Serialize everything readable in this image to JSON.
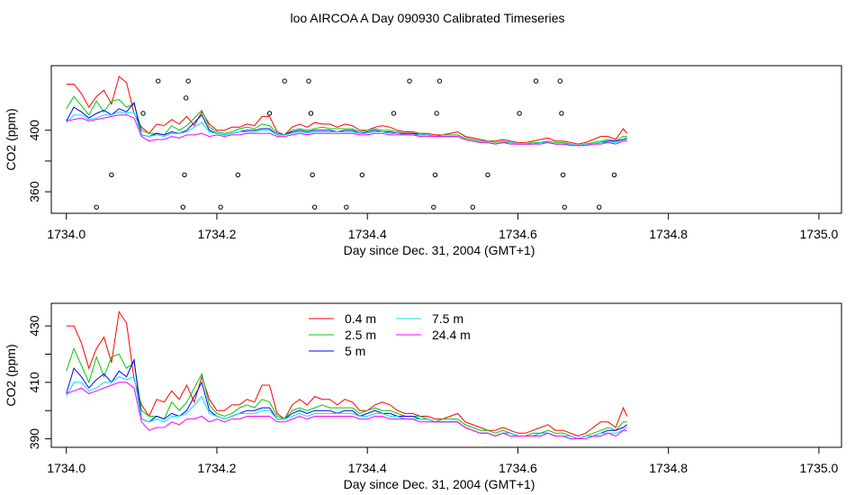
{
  "title": "loo AIRCOA A  Day 090930  Calibrated Timeseries",
  "colors": {
    "0.4 m": "#ff0000",
    "2.5 m": "#00cc00",
    "5 m": "#0000ff",
    "7.5 m": "#00e5e5",
    "24.4 m": "#ff00ff",
    "points": "#000000"
  },
  "chart_data": [
    {
      "type": "line",
      "title": "",
      "xlabel": "Day since Dec. 31, 2004 (GMT+1)",
      "ylabel": "CO2 (ppm)",
      "xlim": [
        1733.98,
        1735.03
      ],
      "ylim": [
        346,
        442
      ],
      "xticks": [
        1734.0,
        1734.2,
        1734.4,
        1734.6,
        1734.8,
        1735.0
      ],
      "xtick_labels": [
        "1734.0",
        "1734.2",
        "1734.4",
        "1734.6",
        "1734.8",
        "1735.0"
      ],
      "yticks": [
        360,
        380,
        400
      ],
      "ytick_labels": [
        "360",
        "",
        "400"
      ],
      "x": [
        1734.0,
        1734.01,
        1734.02,
        1734.03,
        1734.04,
        1734.05,
        1734.06,
        1734.07,
        1734.08,
        1734.09,
        1734.1,
        1734.11,
        1734.12,
        1734.13,
        1734.14,
        1734.15,
        1734.16,
        1734.17,
        1734.18,
        1734.19,
        1734.2,
        1734.21,
        1734.22,
        1734.23,
        1734.24,
        1734.25,
        1734.26,
        1734.27,
        1734.28,
        1734.29,
        1734.3,
        1734.31,
        1734.32,
        1734.33,
        1734.34,
        1734.35,
        1734.36,
        1734.37,
        1734.38,
        1734.39,
        1734.4,
        1734.41,
        1734.42,
        1734.43,
        1734.44,
        1734.45,
        1734.46,
        1734.47,
        1734.48,
        1734.49,
        1734.5,
        1734.51,
        1734.52,
        1734.53,
        1734.54,
        1734.55,
        1734.56,
        1734.57,
        1734.58,
        1734.59,
        1734.6,
        1734.61,
        1734.62,
        1734.63,
        1734.64,
        1734.65,
        1734.66,
        1734.67,
        1734.68,
        1734.69,
        1734.7,
        1734.71,
        1734.72,
        1734.73,
        1734.74,
        1734.745
      ],
      "series": [
        {
          "name": "0.4 m",
          "values": [
            430,
            430,
            424,
            415,
            422,
            426,
            417,
            435,
            431,
            411,
            402,
            398,
            404,
            403,
            407,
            404,
            409,
            403,
            412,
            404,
            400,
            400,
            402,
            402,
            404,
            403,
            409,
            409,
            399,
            397,
            402,
            404,
            402,
            405,
            404,
            404,
            402,
            404,
            403,
            400,
            400,
            402,
            403,
            402,
            400,
            399,
            399,
            398,
            398,
            397,
            397,
            398,
            399,
            396,
            395,
            394,
            393,
            393,
            394,
            393,
            392,
            392,
            393,
            394,
            395,
            393,
            393,
            392,
            391,
            392,
            394,
            396,
            396,
            394,
            401,
            398
          ]
        },
        {
          "name": "2.5 m",
          "values": [
            414,
            422,
            416,
            410,
            419,
            412,
            419,
            420,
            415,
            417,
            400,
            398,
            398,
            397,
            403,
            400,
            403,
            408,
            413,
            402,
            399,
            398,
            399,
            401,
            402,
            401,
            404,
            403,
            398,
            397,
            400,
            401,
            400,
            401,
            402,
            401,
            401,
            401,
            401,
            399,
            400,
            401,
            400,
            400,
            399,
            398,
            398,
            398,
            397,
            396,
            397,
            397,
            397,
            395,
            394,
            393,
            393,
            392,
            393,
            392,
            391,
            391,
            392,
            392,
            393,
            392,
            392,
            391,
            390,
            391,
            392,
            393,
            394,
            393,
            396,
            396
          ]
        },
        {
          "name": "5 m",
          "values": [
            406,
            415,
            412,
            408,
            411,
            413,
            410,
            414,
            412,
            418,
            397,
            396,
            398,
            397,
            399,
            398,
            400,
            405,
            410,
            400,
            398,
            397,
            398,
            399,
            400,
            400,
            401,
            401,
            397,
            397,
            399,
            400,
            399,
            400,
            400,
            400,
            399,
            400,
            400,
            398,
            399,
            400,
            399,
            399,
            398,
            398,
            398,
            397,
            397,
            396,
            396,
            396,
            396,
            394,
            393,
            392,
            392,
            391,
            392,
            392,
            391,
            391,
            391,
            392,
            392,
            391,
            391,
            391,
            390,
            391,
            391,
            392,
            393,
            393,
            394,
            395
          ]
        },
        {
          "name": "7.5 m",
          "values": [
            405,
            410,
            410,
            407,
            408,
            410,
            410,
            412,
            411,
            412,
            397,
            396,
            397,
            396,
            398,
            398,
            399,
            402,
            405,
            399,
            398,
            397,
            398,
            399,
            399,
            399,
            400,
            400,
            397,
            397,
            398,
            399,
            398,
            399,
            399,
            399,
            399,
            399,
            399,
            398,
            398,
            399,
            399,
            398,
            398,
            397,
            397,
            397,
            397,
            396,
            396,
            396,
            396,
            394,
            393,
            392,
            392,
            391,
            392,
            392,
            391,
            391,
            391,
            392,
            392,
            391,
            391,
            391,
            390,
            391,
            391,
            392,
            392,
            392,
            393,
            394
          ]
        },
        {
          "name": "24.4 m",
          "values": [
            406,
            407,
            408,
            406,
            407,
            408,
            409,
            410,
            410,
            408,
            396,
            393,
            394,
            394,
            396,
            395,
            397,
            397,
            398,
            396,
            397,
            396,
            397,
            397,
            398,
            398,
            398,
            398,
            396,
            396,
            397,
            398,
            397,
            398,
            398,
            398,
            398,
            398,
            398,
            397,
            397,
            398,
            398,
            397,
            397,
            397,
            397,
            396,
            396,
            396,
            396,
            396,
            396,
            394,
            393,
            392,
            392,
            391,
            392,
            391,
            391,
            391,
            391,
            391,
            392,
            391,
            391,
            390,
            390,
            390,
            391,
            391,
            392,
            391,
            393,
            393
          ]
        }
      ],
      "points": [
        {
          "x": 1734.04,
          "y": 350
        },
        {
          "x": 1734.06,
          "y": 371
        },
        {
          "x": 1734.102,
          "y": 411
        },
        {
          "x": 1734.122,
          "y": 432
        },
        {
          "x": 1734.155,
          "y": 350
        },
        {
          "x": 1734.157,
          "y": 371
        },
        {
          "x": 1734.159,
          "y": 421
        },
        {
          "x": 1734.162,
          "y": 432
        },
        {
          "x": 1734.205,
          "y": 350
        },
        {
          "x": 1734.228,
          "y": 371
        },
        {
          "x": 1734.27,
          "y": 411
        },
        {
          "x": 1734.29,
          "y": 432
        },
        {
          "x": 1734.322,
          "y": 432
        },
        {
          "x": 1734.325,
          "y": 411
        },
        {
          "x": 1734.327,
          "y": 371
        },
        {
          "x": 1734.33,
          "y": 350
        },
        {
          "x": 1734.372,
          "y": 350
        },
        {
          "x": 1734.393,
          "y": 371
        },
        {
          "x": 1734.435,
          "y": 411
        },
        {
          "x": 1734.456,
          "y": 432
        },
        {
          "x": 1734.488,
          "y": 350
        },
        {
          "x": 1734.49,
          "y": 371
        },
        {
          "x": 1734.492,
          "y": 411
        },
        {
          "x": 1734.496,
          "y": 432
        },
        {
          "x": 1734.54,
          "y": 350
        },
        {
          "x": 1734.56,
          "y": 371
        },
        {
          "x": 1734.602,
          "y": 411
        },
        {
          "x": 1734.624,
          "y": 432
        },
        {
          "x": 1734.656,
          "y": 432
        },
        {
          "x": 1734.658,
          "y": 411
        },
        {
          "x": 1734.66,
          "y": 371
        },
        {
          "x": 1734.662,
          "y": 350
        },
        {
          "x": 1734.708,
          "y": 350
        },
        {
          "x": 1734.728,
          "y": 371
        }
      ]
    },
    {
      "type": "line",
      "title": "",
      "xlabel": "Day since Dec. 31, 2004 (GMT+1)",
      "ylabel": "CO2 (ppm)",
      "xlim": [
        1733.98,
        1735.03
      ],
      "ylim": [
        387,
        438
      ],
      "xticks": [
        1734.0,
        1734.2,
        1734.4,
        1734.6,
        1734.8,
        1735.0
      ],
      "xtick_labels": [
        "1734.0",
        "1734.2",
        "1734.4",
        "1734.6",
        "1734.8",
        "1735.0"
      ],
      "yticks": [
        390,
        400,
        410,
        420,
        430
      ],
      "ytick_labels": [
        "390",
        "",
        "410",
        "",
        "430"
      ],
      "legend": {
        "position": "top-left",
        "entries": [
          "0.4 m",
          "2.5 m",
          "5 m",
          "7.5 m",
          "24.4 m"
        ]
      },
      "same_series_as_panel": 0
    }
  ]
}
